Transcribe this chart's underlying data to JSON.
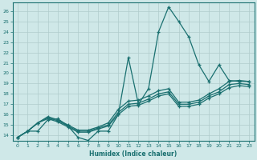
{
  "xlabel": "Humidex (Indice chaleur)",
  "xlim": [
    -0.5,
    23.5
  ],
  "ylim": [
    13.5,
    26.8
  ],
  "yticks": [
    14,
    15,
    16,
    17,
    18,
    19,
    20,
    21,
    22,
    23,
    24,
    25,
    26
  ],
  "xticks": [
    0,
    1,
    2,
    3,
    4,
    5,
    6,
    7,
    8,
    9,
    10,
    11,
    12,
    13,
    14,
    15,
    16,
    17,
    18,
    19,
    20,
    21,
    22,
    23
  ],
  "background_color": "#cfe8e8",
  "grid_color": "#b0cccc",
  "line_color": "#1a7070",
  "line1_y": [
    13.8,
    14.4,
    14.4,
    15.5,
    15.6,
    14.9,
    13.8,
    13.5,
    14.4,
    14.4,
    16.0,
    21.5,
    17.0,
    18.5,
    24.0,
    26.4,
    25.0,
    23.5,
    20.8,
    19.2,
    20.8,
    19.3,
    19.2,
    19.2
  ],
  "line2_y": [
    13.8,
    14.4,
    15.2,
    15.8,
    15.5,
    15.0,
    14.5,
    14.5,
    14.8,
    15.2,
    16.5,
    17.3,
    17.4,
    17.8,
    18.3,
    18.5,
    17.2,
    17.2,
    17.4,
    18.0,
    18.5,
    19.2,
    19.3,
    19.2
  ],
  "line3_y": [
    13.8,
    14.4,
    15.2,
    15.7,
    15.4,
    14.9,
    14.4,
    14.4,
    14.7,
    15.0,
    16.2,
    17.0,
    17.1,
    17.5,
    18.0,
    18.2,
    17.0,
    17.0,
    17.2,
    17.8,
    18.2,
    18.9,
    19.0,
    18.9
  ],
  "line4_y": [
    13.8,
    14.4,
    15.2,
    15.6,
    15.3,
    14.8,
    14.3,
    14.3,
    14.6,
    14.9,
    16.0,
    16.8,
    16.9,
    17.3,
    17.8,
    18.0,
    16.8,
    16.8,
    17.0,
    17.6,
    18.0,
    18.6,
    18.8,
    18.7
  ]
}
